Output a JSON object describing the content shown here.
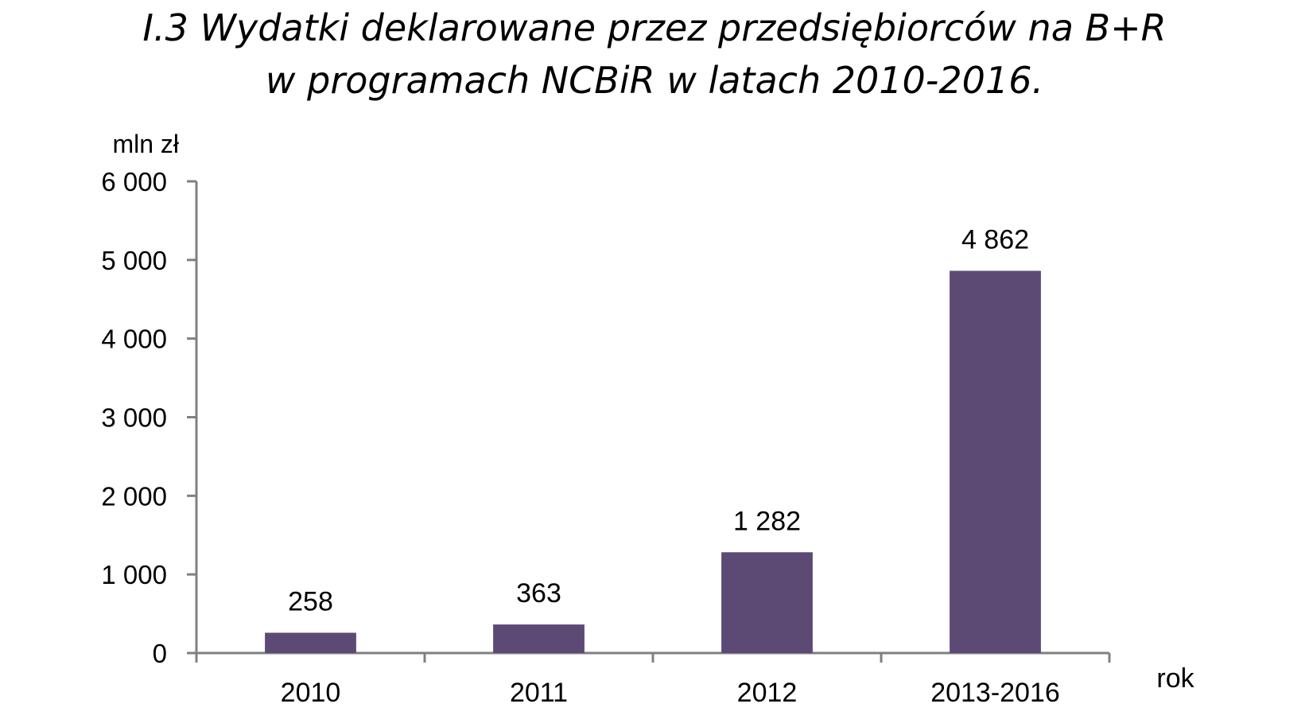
{
  "title_lines": [
    "I.3 Wydatki deklarowane przez przedsiębiorców na B+R",
    "w programach NCBiR w latach 2010-2016."
  ],
  "chart_data": {
    "type": "bar",
    "title": "I.3 Wydatki deklarowane przez przedsiębiorców na B+R w programach NCBiR w latach 2010-2016.",
    "categories": [
      "2010",
      "2011",
      "2012",
      "2013-2016"
    ],
    "values": [
      258,
      363,
      1282,
      4862
    ],
    "value_labels": [
      "258",
      "363",
      "1 282",
      "4 862"
    ],
    "ylabel": "mln zł",
    "xlabel": "rok",
    "ylim": [
      0,
      6000
    ],
    "yticks": [
      0,
      1000,
      2000,
      3000,
      4000,
      5000,
      6000
    ],
    "ytick_labels": [
      "0",
      "1 000",
      "2 000",
      "3 000",
      "4 000",
      "5 000",
      "6 000"
    ],
    "grid": false,
    "legend": "none",
    "bar_color": "#5c4a75",
    "axis_color": "#808080"
  }
}
